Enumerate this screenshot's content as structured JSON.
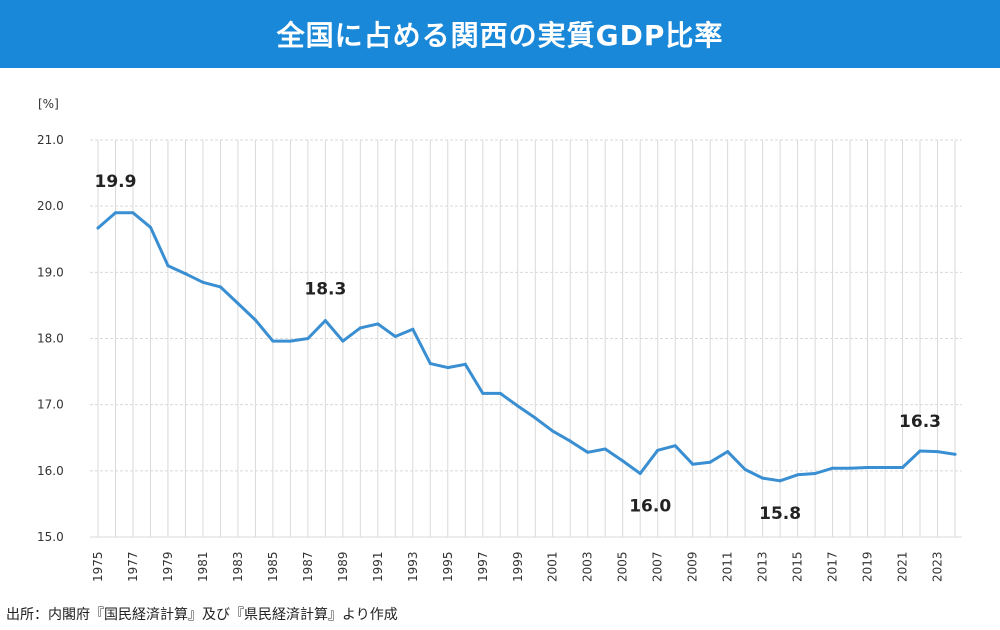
{
  "header": {
    "title": "全国に占める関西の実質GDP比率"
  },
  "source": "出所：内閣府『国民経済計算』及び『県民経済計算』より作成",
  "colors": {
    "title_bar": "#1a88d8",
    "line": "#3a8fd2",
    "grid": "#d9d9d9"
  },
  "chart_data": {
    "type": "line",
    "title": "全国に占める関西の実質GDP比率",
    "ylabel": "[%]",
    "xlabel": "",
    "ylim": [
      15.0,
      21.0
    ],
    "yticks": [
      "15.0",
      "16.0",
      "17.0",
      "18.0",
      "19.0",
      "20.0",
      "21.0"
    ],
    "xticks": [
      "1975",
      "1977",
      "1979",
      "1981",
      "1983",
      "1985",
      "1987",
      "1989",
      "1991",
      "1993",
      "1995",
      "1997",
      "1999",
      "2001",
      "2003",
      "2005",
      "2007",
      "2009",
      "2011",
      "2013",
      "2015",
      "2017",
      "2019",
      "2021",
      "2023"
    ],
    "grid": true,
    "x": [
      1975,
      1976,
      1977,
      1978,
      1979,
      1980,
      1981,
      1982,
      1983,
      1984,
      1985,
      1986,
      1987,
      1988,
      1989,
      1990,
      1991,
      1992,
      1993,
      1994,
      1995,
      1996,
      1997,
      1998,
      1999,
      2000,
      2001,
      2002,
      2003,
      2004,
      2005,
      2006,
      2007,
      2008,
      2009,
      2010,
      2011,
      2012,
      2013,
      2014,
      2015,
      2016,
      2017,
      2018,
      2019,
      2020,
      2021,
      2022,
      2023,
      2024
    ],
    "series": [
      {
        "values": [
          19.67,
          19.9,
          19.9,
          19.68,
          19.1,
          18.98,
          18.85,
          18.78,
          18.53,
          18.28,
          17.96,
          17.96,
          18.0,
          18.27,
          17.96,
          18.16,
          18.22,
          18.03,
          18.14,
          17.62,
          17.56,
          17.61,
          17.17,
          17.17,
          16.98,
          16.8,
          16.6,
          16.45,
          16.28,
          16.33,
          16.15,
          15.96,
          16.31,
          16.38,
          16.1,
          16.13,
          16.29,
          16.02,
          15.89,
          15.85,
          15.94,
          15.96,
          16.04,
          16.04,
          16.05,
          16.05,
          16.05,
          16.3,
          16.29,
          16.25
        ]
      }
    ],
    "annotations": [
      {
        "text": "19.9",
        "x": 1976,
        "y": 19.9
      },
      {
        "text": "18.3",
        "x": 1988,
        "y": 18.27
      },
      {
        "text": "16.0",
        "x": 2006,
        "y": 15.96
      },
      {
        "text": "15.8",
        "x": 2014,
        "y": 15.85
      },
      {
        "text": "16.3",
        "x": 2022,
        "y": 16.3
      }
    ]
  }
}
